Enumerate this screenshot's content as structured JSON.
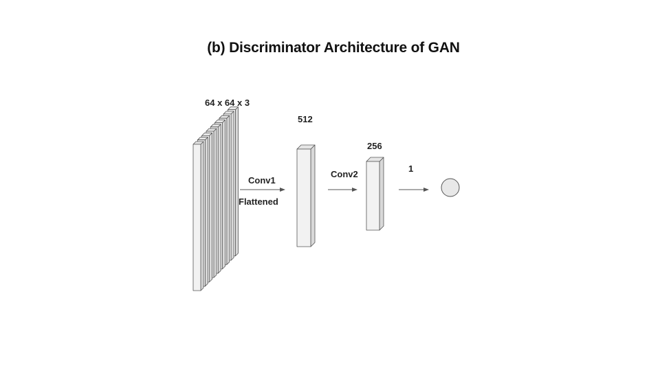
{
  "title": "(b) Discriminator Architecture of GAN",
  "layers": {
    "input": {
      "label": "64 x 64 x 3",
      "channels": 9
    },
    "hidden1": {
      "label": "512"
    },
    "hidden2": {
      "label": "256"
    },
    "output": {
      "label": "1"
    }
  },
  "edges": {
    "conv1": {
      "label": "Conv1",
      "sublabel": "Flattened"
    },
    "conv2": {
      "label": "Conv2"
    }
  },
  "colors": {
    "block_front": "#f2f2f2",
    "block_side": "#d9d9d9",
    "block_top": "#e6e6e6",
    "stroke": "#555555",
    "output_fill": "#e8e8e8",
    "arrow": "#555555"
  }
}
